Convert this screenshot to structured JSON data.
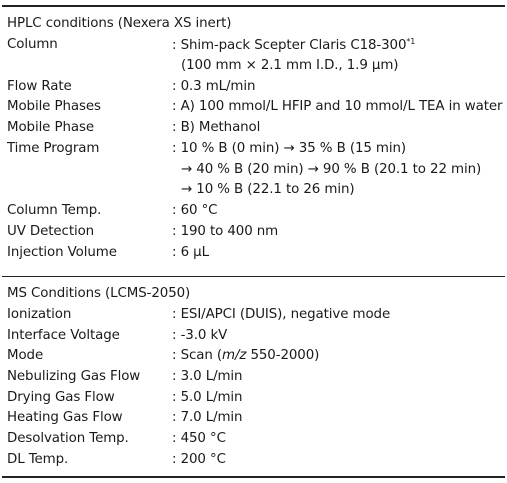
{
  "hplc": {
    "title": "HPLC conditions (Nexera XS inert)",
    "column": {
      "label": "Column",
      "value": ": Shim-pack Scepter Claris C18-300",
      "footnote": "*1",
      "value2": "(100 mm × 2.1 mm I.D., 1.9 µm)"
    },
    "flow_rate": {
      "label": "Flow Rate",
      "value": ": 0.3 mL/min"
    },
    "mobile_phases": {
      "label": "Mobile Phases",
      "value": ": A) 100 mmol/L HFIP and 10 mmol/L TEA in water"
    },
    "mobile_phase": {
      "label": "Mobile Phase",
      "value": ": B) Methanol"
    },
    "time_program": {
      "label": "Time Program",
      "line1": ": 10 % B (0 min) → 35 % B (15 min)",
      "line2": "→ 40 % B (20 min) → 90 % B (20.1 to 22 min)",
      "line3": "→ 10 % B (22.1 to 26 min)"
    },
    "column_temp": {
      "label": "Column Temp.",
      "value": ": 60 °C"
    },
    "uv_detection": {
      "label": "UV Detection",
      "value": ": 190 to 400 nm"
    },
    "injection_volume": {
      "label": "Injection Volume",
      "value": ": 6 µL"
    }
  },
  "ms": {
    "title": "MS Conditions (LCMS-2050)",
    "ionization": {
      "label": "Ionization",
      "value": ": ESI/APCI (DUIS), negative mode"
    },
    "interface_voltage": {
      "label": "Interface Voltage",
      "value": ": -3.0 kV"
    },
    "mode": {
      "label": "Mode",
      "value_pre": ": Scan (",
      "value_italic": "m/z",
      "value_post": " 550-2000)"
    },
    "nebulizing_gas_flow": {
      "label": "Nebulizing Gas Flow",
      "value": ": 3.0 L/min"
    },
    "drying_gas_flow": {
      "label": "Drying Gas Flow",
      "value": ": 5.0 L/min"
    },
    "heating_gas_flow": {
      "label": "Heating Gas Flow",
      "value": ": 7.0 L/min"
    },
    "desolvation_temp": {
      "label": "Desolvation Temp.",
      "value": ": 450 °C"
    },
    "dl_temp": {
      "label": "DL Temp.",
      "value": ": 200 °C"
    }
  }
}
